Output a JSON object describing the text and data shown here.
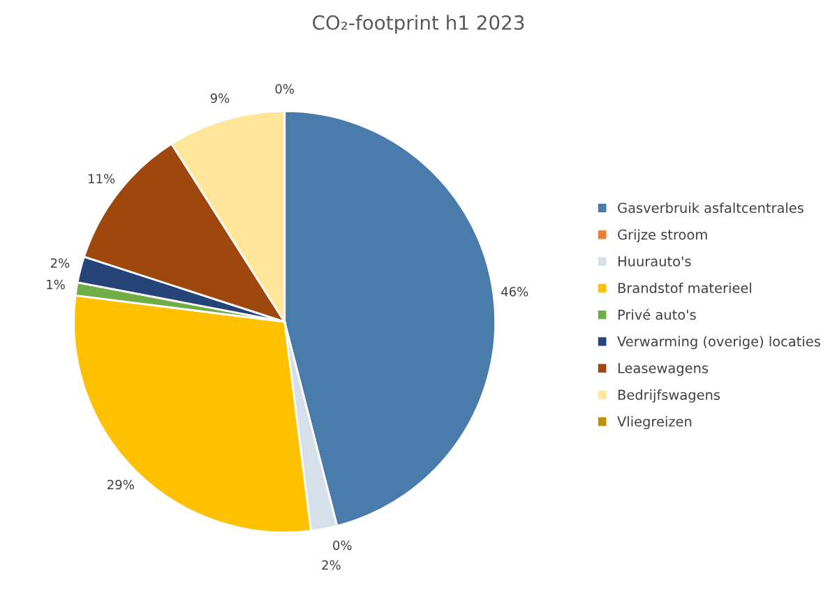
{
  "chart_data": {
    "type": "pie",
    "title": "CO₂-footprint h1 2023",
    "categories": [
      "Gasverbruik asfaltcentrales",
      "Grijze stroom",
      "Huurauto's",
      "Brandstof materieel",
      "Privé auto's",
      "Verwarming (overige) locaties",
      "Leasewagens",
      "Bedrijfswagens",
      "Vliegreizen"
    ],
    "values": [
      46,
      0,
      2,
      29,
      1,
      2,
      11,
      9,
      0
    ],
    "colors": [
      "#4a7cab",
      "#ed7d31",
      "#d5e0ea",
      "#ffc000",
      "#70ad47",
      "#264478",
      "#9e480e",
      "#ffe699",
      "#bf9000"
    ],
    "value_labels": [
      "46%",
      "0%",
      "2%",
      "29%",
      "1%",
      "2%",
      "11%",
      "9%",
      "0%"
    ],
    "legend": "right"
  }
}
